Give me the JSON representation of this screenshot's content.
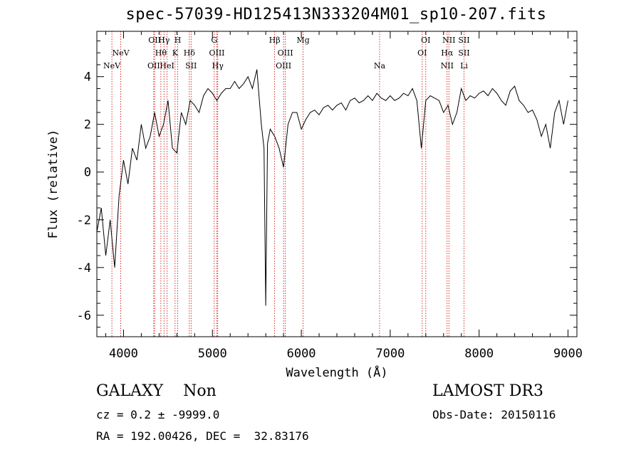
{
  "title": "spec-57039-HD125413N333204M01_sp10-207.fits",
  "info": {
    "class_line": "GALAXY    Non",
    "cz_line": "cz = 0.2 ± -9999.0",
    "radec_line": "RA = 192.00426, DEC =  32.83176",
    "survey": "LAMOST DR3",
    "obs_date_line": "Obs-Date: 20150116"
  },
  "chart_data": {
    "type": "line",
    "title": "spec-57039-HD125413N333204M01_sp10-207.fits",
    "xlabel": "Wavelength (Å)",
    "ylabel": "Flux (relative)",
    "xlim": [
      3700,
      9100
    ],
    "ylim": [
      -6.9,
      5.9
    ],
    "xticks": [
      4000,
      5000,
      6000,
      7000,
      8000,
      9000
    ],
    "yticks": [
      -6,
      -4,
      -2,
      0,
      2,
      4
    ],
    "grid": false,
    "line_color": "#000000",
    "marker_color": "#cc0000",
    "series": [
      {
        "x": [
          3700,
          3750,
          3800,
          3850,
          3900,
          3950,
          4000,
          4050,
          4100,
          4150,
          4200,
          4250,
          4300,
          4350,
          4400,
          4450,
          4500,
          4550,
          4600,
          4650,
          4700,
          4750,
          4800,
          4850,
          4900,
          4950,
          5000,
          5050,
          5100,
          5150,
          5200,
          5250,
          5300,
          5350,
          5400,
          5450,
          5500,
          5550,
          5580,
          5600,
          5620,
          5650,
          5700,
          5750,
          5800,
          5850,
          5900,
          5950,
          6000,
          6050,
          6100,
          6150,
          6200,
          6250,
          6300,
          6350,
          6400,
          6450,
          6500,
          6550,
          6600,
          6650,
          6700,
          6750,
          6800,
          6850,
          6900,
          6950,
          7000,
          7050,
          7100,
          7150,
          7200,
          7250,
          7300,
          7350,
          7400,
          7450,
          7500,
          7550,
          7600,
          7650,
          7700,
          7750,
          7800,
          7850,
          7900,
          7950,
          8000,
          8050,
          8100,
          8150,
          8200,
          8250,
          8300,
          8350,
          8400,
          8450,
          8500,
          8550,
          8600,
          8650,
          8700,
          8750,
          8800,
          8850,
          8900,
          8950,
          9000
        ],
        "y": [
          -2.5,
          -1.5,
          -3.5,
          -2.0,
          -4.0,
          -1.0,
          0.5,
          -0.5,
          1.0,
          0.5,
          2.0,
          1.0,
          1.5,
          2.5,
          1.5,
          2.0,
          3.0,
          1.0,
          0.8,
          2.5,
          2.0,
          3.0,
          2.8,
          2.5,
          3.2,
          3.5,
          3.3,
          3.0,
          3.3,
          3.5,
          3.5,
          3.8,
          3.5,
          3.7,
          4.0,
          3.5,
          4.3,
          2.0,
          1.0,
          -5.6,
          1.2,
          1.8,
          1.5,
          1.0,
          0.2,
          2.0,
          2.5,
          2.5,
          1.8,
          2.2,
          2.5,
          2.6,
          2.4,
          2.7,
          2.8,
          2.6,
          2.8,
          2.9,
          2.6,
          3.0,
          3.1,
          2.9,
          3.0,
          3.2,
          3.0,
          3.3,
          3.1,
          3.0,
          3.2,
          3.0,
          3.1,
          3.3,
          3.2,
          3.5,
          3.0,
          1.0,
          3.0,
          3.2,
          3.1,
          3.0,
          2.5,
          2.8,
          2.0,
          2.5,
          3.5,
          3.0,
          3.2,
          3.1,
          3.3,
          3.4,
          3.2,
          3.5,
          3.3,
          3.0,
          2.8,
          3.4,
          3.6,
          3.0,
          2.8,
          2.5,
          2.6,
          2.2,
          1.5,
          2.0,
          1.0,
          2.5,
          3.0,
          2.0,
          3.0
        ]
      }
    ],
    "line_markers": [
      {
        "x": 3869,
        "label": "NeV",
        "row": 2
      },
      {
        "x": 3969,
        "label": "NeV",
        "row": 1
      },
      {
        "x": 4340,
        "label": "OII",
        "row": 2
      },
      {
        "x": 4350,
        "label": "OII",
        "row": 0
      },
      {
        "x": 4420,
        "label": "Hθ",
        "row": 1
      },
      {
        "x": 4455,
        "label": "Hγ",
        "row": 0
      },
      {
        "x": 4490,
        "label": "HeI",
        "row": 2
      },
      {
        "x": 4580,
        "label": "K",
        "row": 1
      },
      {
        "x": 4610,
        "label": "H",
        "row": 0
      },
      {
        "x": 4740,
        "label": "Hδ",
        "row": 1
      },
      {
        "x": 4760,
        "label": "SII",
        "row": 2
      },
      {
        "x": 5020,
        "label": "G",
        "row": 0
      },
      {
        "x": 5050,
        "label": "OIII",
        "row": 1
      },
      {
        "x": 5060,
        "label": "Hγ",
        "row": 2
      },
      {
        "x": 5700,
        "label": "Hβ",
        "row": 0
      },
      {
        "x": 5820,
        "label": "OIII",
        "row": 1
      },
      {
        "x": 5800,
        "label": "OIII",
        "row": 2
      },
      {
        "x": 6020,
        "label": "Mg",
        "row": 0
      },
      {
        "x": 6880,
        "label": "Na",
        "row": 2
      },
      {
        "x": 7400,
        "label": "OI",
        "row": 0
      },
      {
        "x": 7360,
        "label": "OI",
        "row": 1
      },
      {
        "x": 7660,
        "label": "NII",
        "row": 0
      },
      {
        "x": 7640,
        "label": "Hα",
        "row": 1
      },
      {
        "x": 7640,
        "label": "NII",
        "row": 2
      },
      {
        "x": 7830,
        "label": "SII",
        "row": 0
      },
      {
        "x": 7830,
        "label": "SII",
        "row": 1
      },
      {
        "x": 7830,
        "label": "Li",
        "row": 2
      }
    ]
  }
}
